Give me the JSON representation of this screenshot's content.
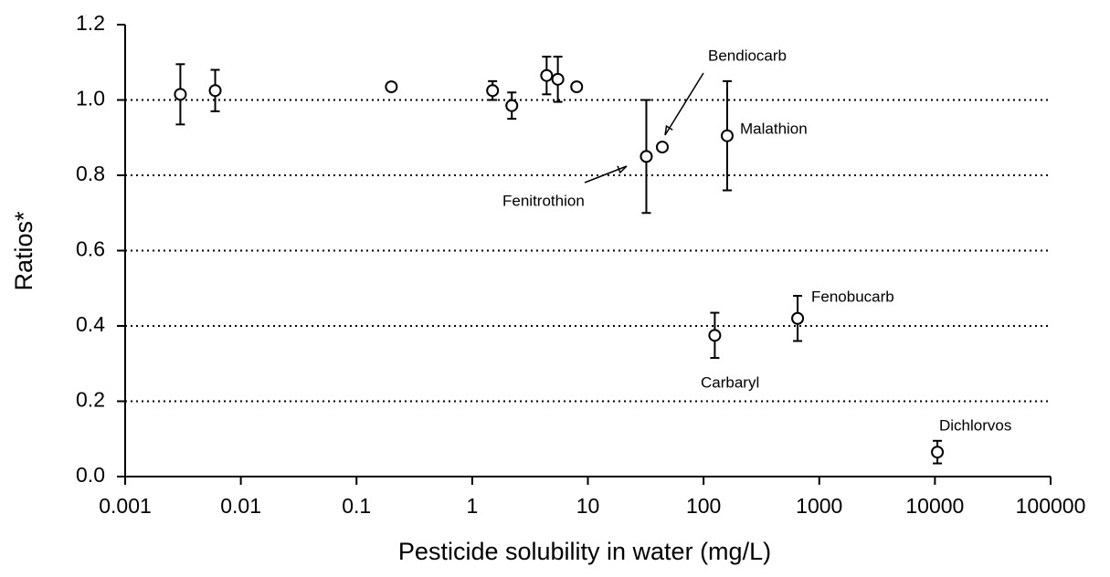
{
  "chart_data": {
    "type": "scatter",
    "x_label": "Pesticide solubility in water (mg/L)",
    "y_label": "Ratios*",
    "x_log": true,
    "grid": true,
    "color": "#000000",
    "x": [
      0.003,
      0.006,
      0.2,
      1.5,
      2.2,
      4.4,
      5.5,
      8,
      32,
      44,
      160,
      125,
      650,
      10500
    ],
    "values": [
      1.015,
      1.025,
      1.035,
      1.025,
      0.985,
      1.065,
      1.055,
      1.035,
      0.85,
      0.875,
      0.905,
      0.375,
      0.42,
      0.065
    ],
    "errors": [
      0.08,
      0.055,
      null,
      0.025,
      0.035,
      0.05,
      0.06,
      null,
      0.15,
      null,
      0.145,
      0.06,
      0.06,
      0.03
    ],
    "xlim": [
      0.001,
      100000
    ],
    "xticks": [
      0.001,
      0.01,
      0.1,
      1,
      10,
      100,
      1000,
      10000,
      100000
    ],
    "ylim": [
      0,
      1.2
    ],
    "yticks": [
      {
        "value": 0,
        "label": "0.0"
      },
      0.2,
      0.4,
      0.6,
      0.8,
      {
        "value": 1,
        "label": "1.0"
      },
      1.2
    ],
    "annotations": [
      "Bendiocarb",
      "Malathion",
      "Fenitrothion",
      "Fenobucarb",
      "Carbaryl",
      "Dichlorvos"
    ]
  }
}
